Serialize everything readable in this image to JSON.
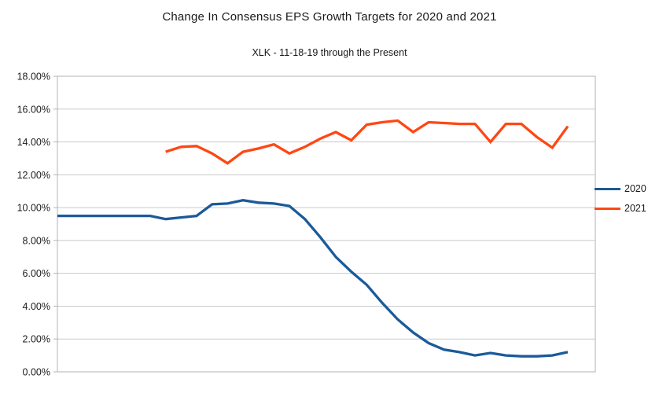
{
  "chart_data": {
    "type": "line",
    "title": "Change In Consensus EPS Growth Targets for 2020 and 2021",
    "subtitle": "XLK - 11-18-19 through the Present",
    "ylabel": "",
    "xlabel": "",
    "x_axis_labels_visible": false,
    "ylim": [
      0,
      18
    ],
    "ytick_step": 2,
    "grid": "horizontal",
    "legend_position": "right",
    "colors": {
      "series_2020": "#1b5a9a",
      "series_2021": "#ff4713",
      "gridline": "#c9c9c9",
      "plot_border": "#b3b3b3",
      "text": "#1a1a1a"
    },
    "y_ticks": [
      {
        "value": 18,
        "label": "18.00%"
      },
      {
        "value": 16,
        "label": "16.00%"
      },
      {
        "value": 14,
        "label": "14.00%"
      },
      {
        "value": 12,
        "label": "12.00%"
      },
      {
        "value": 10,
        "label": "10.00%"
      },
      {
        "value": 8,
        "label": "8.00%"
      },
      {
        "value": 6,
        "label": "6.00%"
      },
      {
        "value": 4,
        "label": "4.00%"
      },
      {
        "value": 2,
        "label": "2.00%"
      },
      {
        "value": 0,
        "label": "0.00%"
      }
    ],
    "series": [
      {
        "name": "2020",
        "color": "#1b5a9a",
        "values": [
          9.5,
          9.5,
          9.5,
          9.5,
          9.5,
          9.5,
          9.5,
          9.3,
          9.4,
          9.5,
          10.2,
          10.25,
          10.45,
          10.3,
          10.25,
          10.1,
          9.3,
          8.2,
          7.0,
          6.1,
          5.3,
          4.2,
          3.2,
          2.4,
          1.75,
          1.35,
          1.2,
          1.0,
          1.15,
          1.0,
          0.95,
          0.95,
          1.0,
          1.2
        ]
      },
      {
        "name": "2021",
        "color": "#ff4713",
        "values": [
          null,
          null,
          null,
          null,
          null,
          null,
          null,
          13.4,
          13.7,
          13.75,
          13.3,
          12.7,
          13.4,
          13.6,
          13.85,
          13.3,
          13.7,
          14.2,
          14.6,
          14.1,
          15.05,
          15.2,
          15.3,
          14.6,
          15.2,
          15.15,
          15.1,
          15.1,
          14.0,
          15.1,
          15.1,
          14.3,
          13.65,
          14.95
        ]
      }
    ]
  }
}
